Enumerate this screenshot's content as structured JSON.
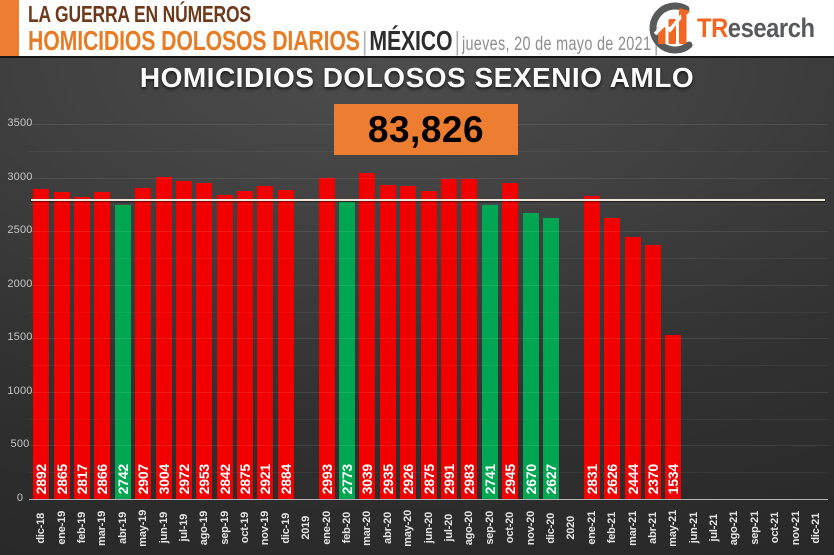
{
  "header": {
    "kicker": "LA GUERRA EN NÚMEROS",
    "program_title": "HOMICIDIOS DOLOSOS DIARIOS",
    "separator": "|",
    "region": "MÉXICO",
    "date": "jueves, 20 de mayo de 2021"
  },
  "logo": {
    "name": "TResearch",
    "prefix": "TR",
    "suffix": "esearch",
    "icon": "bar-chart-swoosh-arrow-icon"
  },
  "palette": {
    "bar_red": "#F10000",
    "bar_green": "#00A651",
    "total_box_orange": "#ED7D31",
    "header_orange": "#E87C25",
    "kicker_brown": "#6E3A1C",
    "region_dark": "#2D2D2D",
    "logo_orange": "#F26522",
    "logo_gray": "#58595B",
    "reference_line": "#EDE6DA"
  },
  "chart_data": {
    "type": "bar",
    "title": "HOMICIDIOS DOLOSOS SEXENIO AMLO",
    "total_label": "83,826",
    "xlabel": "",
    "ylabel": "",
    "ylim": [
      0,
      3500
    ],
    "yticks": [
      0,
      500,
      1000,
      1500,
      2000,
      2500,
      3000,
      3500
    ],
    "grid": "subtle horizontal lines every 250, darker theme",
    "legend": "none",
    "reference_line_value": 2800,
    "bar_value_labels": "white, vertical, inside bar at base",
    "categories": [
      "dic-18",
      "ene-19",
      "feb-19",
      "mar-19",
      "abr-19",
      "may-19",
      "jun-19",
      "jul-19",
      "ago-19",
      "sep-19",
      "oct-19",
      "nov-19",
      "dic-19",
      "2019",
      "ene-20",
      "feb-20",
      "mar-20",
      "abr-20",
      "may-20",
      "jun-20",
      "jul-20",
      "ago-20",
      "sep-20",
      "oct-20",
      "nov-20",
      "dic-20",
      "2020",
      "ene-21",
      "feb-21",
      "mar-21",
      "abr-21",
      "may-21",
      "jun-21",
      "jul-21",
      "ago-21",
      "sep-21",
      "oct-21",
      "nov-21",
      "dic-21"
    ],
    "values": [
      2892,
      2865,
      2817,
      2866,
      2742,
      2907,
      3004,
      2972,
      2953,
      2842,
      2875,
      2921,
      2884,
      null,
      2993,
      2773,
      3039,
      2935,
      2926,
      2875,
      2991,
      2983,
      2741,
      2945,
      2670,
      2627,
      null,
      2831,
      2626,
      2444,
      2370,
      1534,
      null,
      null,
      null,
      null,
      null,
      null,
      null
    ],
    "colors": [
      "red",
      "red",
      "red",
      "red",
      "green",
      "red",
      "red",
      "red",
      "red",
      "red",
      "red",
      "red",
      "red",
      null,
      "red",
      "green",
      "red",
      "red",
      "red",
      "red",
      "red",
      "red",
      "green",
      "red",
      "green",
      "green",
      null,
      "red",
      "red",
      "red",
      "red",
      "red",
      null,
      null,
      null,
      null,
      null,
      null,
      null
    ]
  }
}
